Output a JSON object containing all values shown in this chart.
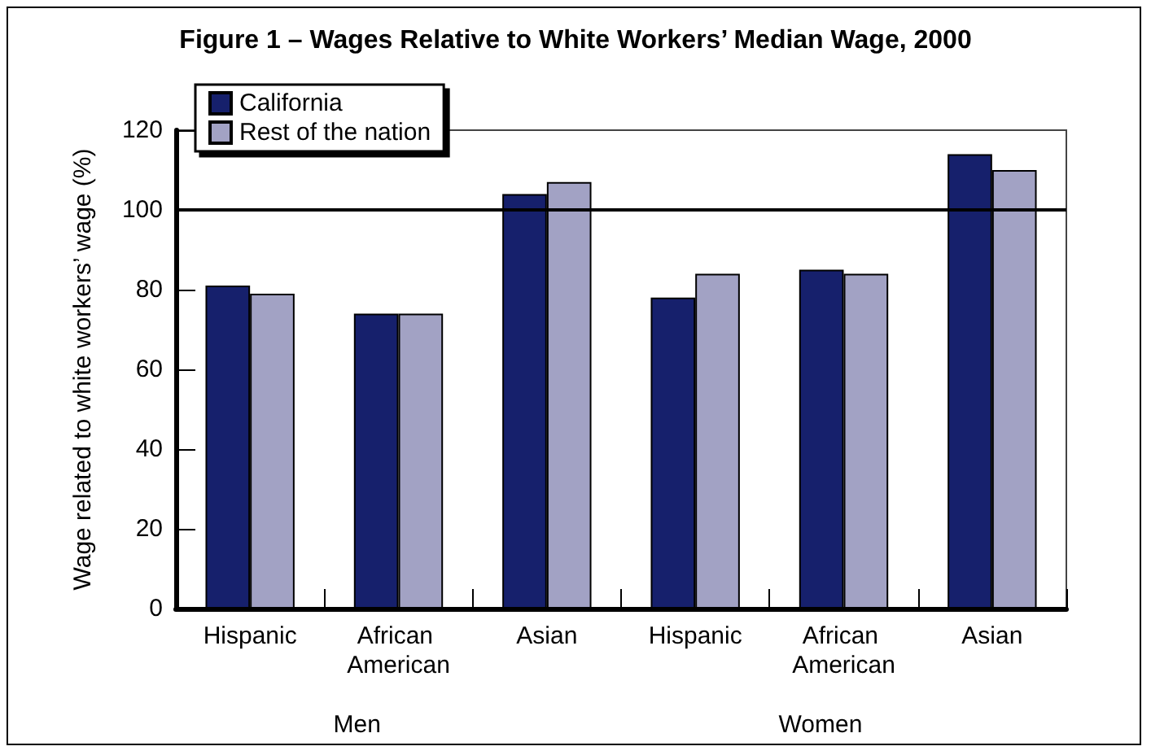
{
  "chart_data": {
    "type": "bar",
    "title": "Figure 1 – Wages Relative to White Workers’ Median Wage, 2000",
    "ylabel": "Wage related to white workers’ wage (%)",
    "categories": [
      "Hispanic",
      "African American",
      "Asian",
      "Hispanic",
      "African American",
      "Asian"
    ],
    "series": [
      {
        "name": "California",
        "color": "#16206c",
        "values": [
          81,
          74,
          104,
          78,
          85,
          114
        ]
      },
      {
        "name": "Rest of the nation",
        "color": "#a2a2c4",
        "values": [
          79,
          74,
          107,
          84,
          84,
          110
        ]
      }
    ],
    "annotations": [
      "Men",
      "Women"
    ],
    "ylim": [
      0,
      120
    ],
    "yticks": [
      0,
      20,
      40,
      60,
      80,
      100,
      120
    ],
    "grid": false,
    "legend": "top left",
    "ref_lines": [
      {
        "axis": "y",
        "value": 100,
        "color": "#000000"
      }
    ]
  }
}
